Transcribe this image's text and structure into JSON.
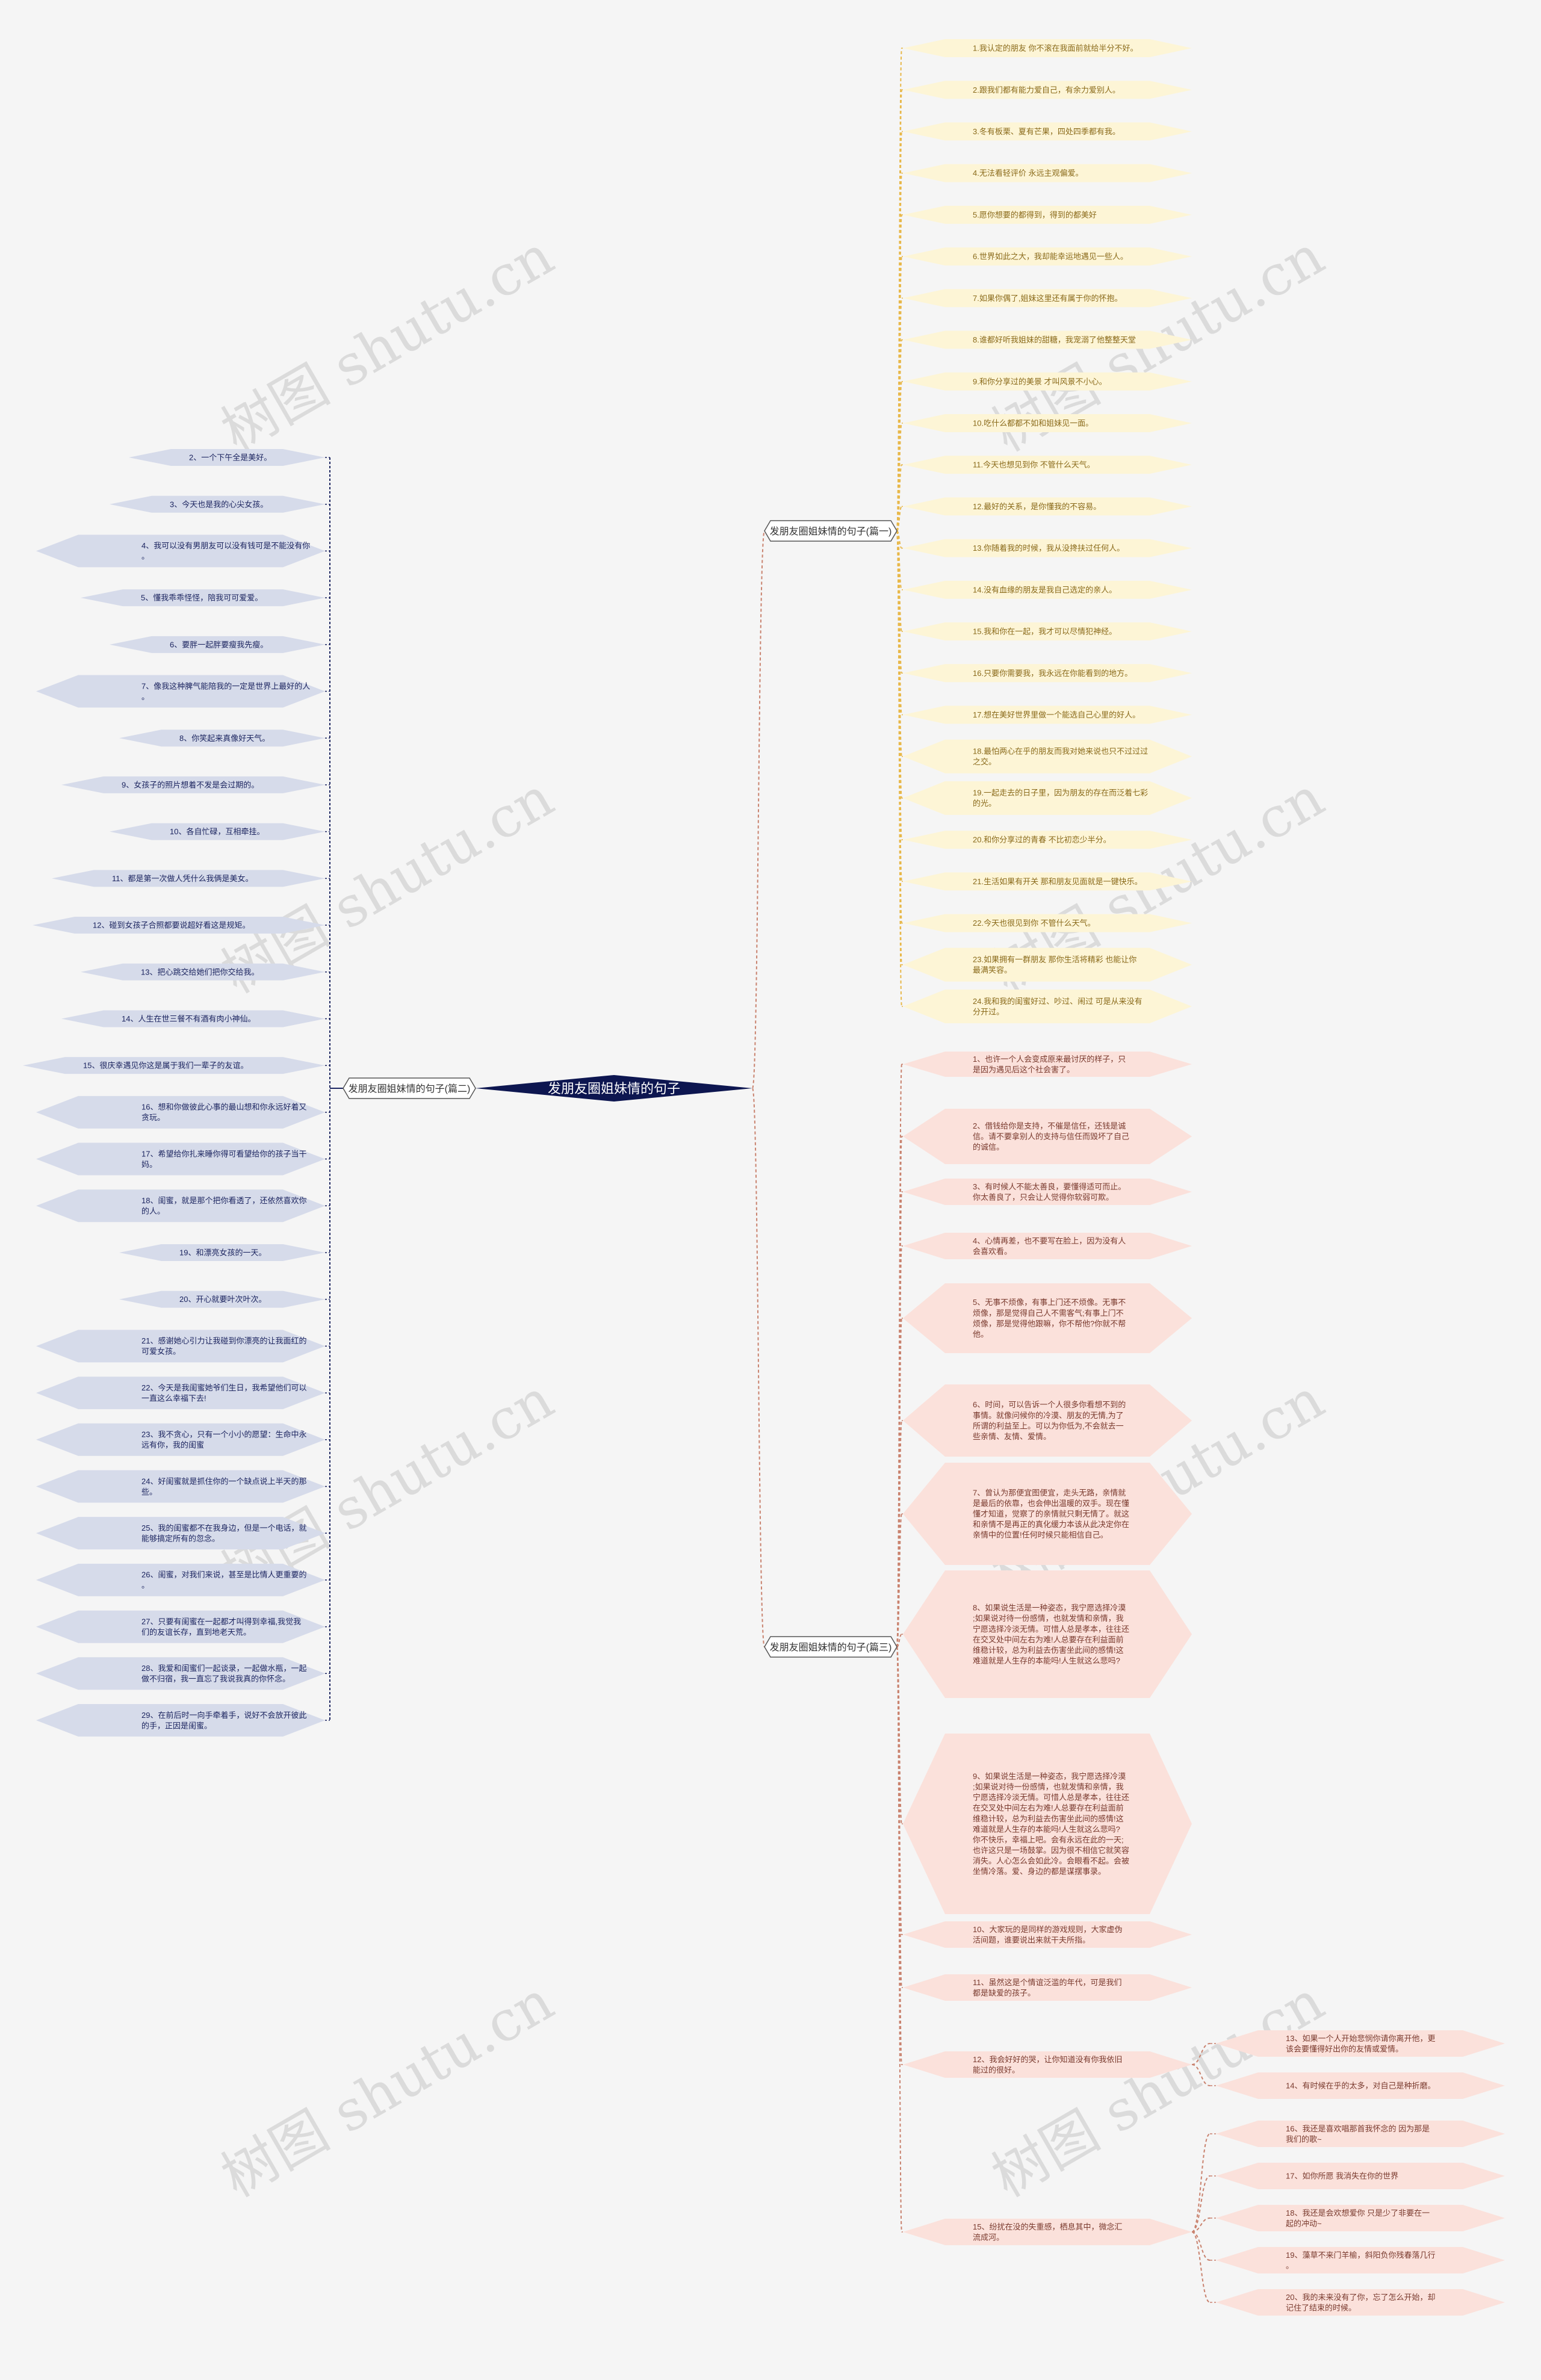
{
  "root": {
    "label": "发朋友圈姐妹情的句子"
  },
  "colors": {
    "root_fill": "#0d1650",
    "root_text": "#ffffff",
    "branch_fill": "#ffffff",
    "branch_stroke": "#555555",
    "line_yellow": "#e8b84a",
    "line_red": "#c9826e",
    "line_navy": "#1c2560",
    "yellow_leaf": "#fdf5d6",
    "pink_leaf": "#fbe1db",
    "blue_leaf": "#d6dbea",
    "leaf_text_yellow": "#8a6a1a",
    "leaf_text_red": "#7a3a2e",
    "leaf_text_navy": "#1c2560"
  },
  "watermark": "树图 shutu.cn",
  "branches": [
    {
      "id": "b1",
      "label": "发朋友圈姐妹情的句子(篇一)",
      "leaves": [
        "1.我认定的朋友 你不滚在我面前就给半分不好。",
        "2.跟我们都有能力爱自己，有余力爱别人。",
        "3.冬有板栗、夏有芒果，四处四季都有我。",
        "4.无法看轻评价 永远主观偏爱。",
        "5.愿你想要的都得到，得到的都美好",
        "6.世界如此之大，我却能幸运地遇见一些人。",
        "7.如果你偶了,姐妹这里还有属于你的怀抱。",
        "8.谁都好听我姐妹的甜糖，我宠溺了他整整天堂",
        "9.和你分享过的美景 才叫风景不小心。",
        "10.吃什么都都不如和姐妹见一面。",
        "11.今天也想见到你 不管什么天气。",
        "12.最好的关系，是你懂我的不容易。",
        "13.你随着我的时候，我从没搀扶过任何人。",
        "14.没有血缘的朋友是我自己选定的亲人。",
        "15.我和你在一起，我才可以尽情犯神经。",
        "16.只要你需要我，我永远在你能看到的地方。",
        "17.想在美好世界里做一个能选自己心里的好人。",
        "18.最怕两心在乎的朋友而我对她来说也只不过过过之交。",
        "19.一起走去的日子里，因为朋友的存在而泛着七彩的光。",
        "20.和你分享过的青春 不比初恋少半分。",
        "21.生活如果有开关 那和朋友见面就是一键快乐。",
        "22.今天也很见到你 不管什么天气。",
        "23.如果拥有一群朋友 那你生活将精彩 也能让你最满笑容。",
        "24.我和我的闺蜜好过、吵过、闹过 可是从来没有分开过。"
      ]
    },
    {
      "id": "b2",
      "label": "发朋友圈姐妹情的句子(篇二)",
      "leaves": [
        "2、一个下午全是美好。",
        "3、今天也是我的心尖女孩。",
        "4、我可以没有男朋友可以没有钱可是不能没有你。",
        "5、懂我乖乖怪怪，陪我可可爱爱。",
        "6、要胖一起胖要瘦我先瘦。",
        "7、像我这种脾气能陪我的一定是世界上最好的人。",
        "8、你笑起来真像好天气。",
        "9、女孩子的照片想着不发是会过期的。",
        "10、各自忙碌，互相牵挂。",
        "11、都是第一次做人凭什么我俩是美女。",
        "12、碰到女孩子合照都要说超好看这是规矩。",
        "13、把心跳交给她们把你交给我。",
        "14、人生在世三餐不有酒有肉小神仙。",
        "15、很庆幸遇见你这是属于我们一辈子的友谊。",
        "16、想和你做彼此心事的最山想和你永远好着又贪玩。",
        "17、希望给你扎来睡你得可看望给你的孩子当干妈。",
        "18、闺蜜，就是那个把你看透了，还依然喜欢你的人。",
        "19、和漂亮女孩的一天。",
        "20、开心就要叶次叶次。",
        "21、感谢她心引力让我碰到你漂亮的让我面红的可爱女孩。",
        "22、今天是我闺蜜她爷们生日，我希望他们可以一直这么幸福下去!",
        "23、我不贪心，只有一个小小的愿望：生命中永远有你，我的闺蜜",
        "24、好闺蜜就是抓住你的一个缺点说上半天的那些。",
        "25、我的闺蜜都不在我身边，但是一个电话，就能够搞定所有的忽念。",
        "26、闺蜜，对我们来说，甚至是比情人更重要的。",
        "27、只要有闺蜜在一起都才叫得到幸福,我觉我们的友谊长存，直到地老天荒。",
        "28、我爱和闺蜜们一起谈录，一起做水瓶，一起做不归宿，我一直忘了我说我真的你怀念。",
        "29、在前后时一向手牵着手，说好不会放开彼此的手，正因是闺蜜。"
      ]
    },
    {
      "id": "b3",
      "label": "发朋友圈姐妹情的句子(篇三)",
      "leaves": [
        "1、也许一个人会变成原来最讨厌的样子，只是因为遇见后这个社会害了。",
        "2、借钱给你是支持，不催是信任，还钱是诚信。请不要拿别人的支持与信任而毁坏了自己的诚信。",
        "3、有时候人不能太善良，要懂得适可而止。你太善良了，只会让人觉得你软弱可欺。",
        "4、心情再差，也不要写在脸上，因为没有人会喜欢看。",
        "5、无事不烦像，有事上门还不烦像。无事不烦像，那是觉得自己人不需客气;有事上门不烦像，那是觉得他跟嘛，你不帮他?你就不帮他。",
        "6、时间，可以告诉一个人很多你看想不到的事情。就像问候你的冷漠、朋友的无情,为了所谓的利益至上。可以为你低为,不会就去一些亲情、友情、爱情。",
        "7、曾认为那便宜图便宜，走头无路，亲情就是最后的依靠，也会伸出温暖的双手。现在懂懂才知道，觉察了的亲情就只剩无情了。就这和亲情不是再正的真化缓力本该从此决定你在亲情中的位置!任何时候只能相信自己。",
        "8、如果说生活是一种姿态，我宁愿选择冷漠;如果说对待一份感情，也就发情和亲情，我宁愿选择冷淡无情。可惜人总是孝本，往往还在交叉处中间左右为难!人总要存在利益面前维稳计较，总为利益去伤害坐此间的感情!这难道就是人生存的本能吗!人生就这么悲吗?",
        "9、如果说生活是一种姿态，我宁愿选择冷漠;如果说对待一份感情，也就发情和亲情，我宁愿选择冷淡无情。可惜人总是孝本，往往还在交叉处中间左右为难!人总要存在利益面前维稳计较，总为利益去伤害坐此间的感情!这难道就是人生存的本能吗!人生就这么悲吗?你不快乐，幸福上吧。会有永远在此的一天;也许这只是一场鼓掌。因为很不相信它就笑容消失。人心怎么会如此冷。会眼看不起。会被坐情冷落。爱、身边的都是谋摆事录。",
        "10、大家玩的是同样的游戏规则，大家虚伪活间题，谁要说出来就干夫所指。",
        "11、虽然这是个情谊泛滥的年代，可是我们都是缺爱的孩子。",
        {
          "text": "12、我会好好的哭，让你知道没有你我依旧能过的很好。",
          "children": [
            "13、如果一个人开始悲悯你请你离开他，更该会要懂得好出你的友情或爱情。",
            "14、有时候在乎的太多，对自己是种折磨。"
          ]
        },
        {
          "text": "15、纷扰在没的失重感，栖息其中，微念汇流成河。",
          "children": [
            "16、我还是喜欢唱那首我怀念的 因为那是我们的歌~",
            "17、如你所愿 我消失在你的世界",
            "18、我还是会欢想爱你 只是少了非要在一起的冲动~",
            "19、藻草不来门羊榆，斜阳负你残春落几行。",
            "20、我的未来没有了你，忘了怎么开始，却记住了结束的时候。"
          ]
        }
      ]
    }
  ]
}
